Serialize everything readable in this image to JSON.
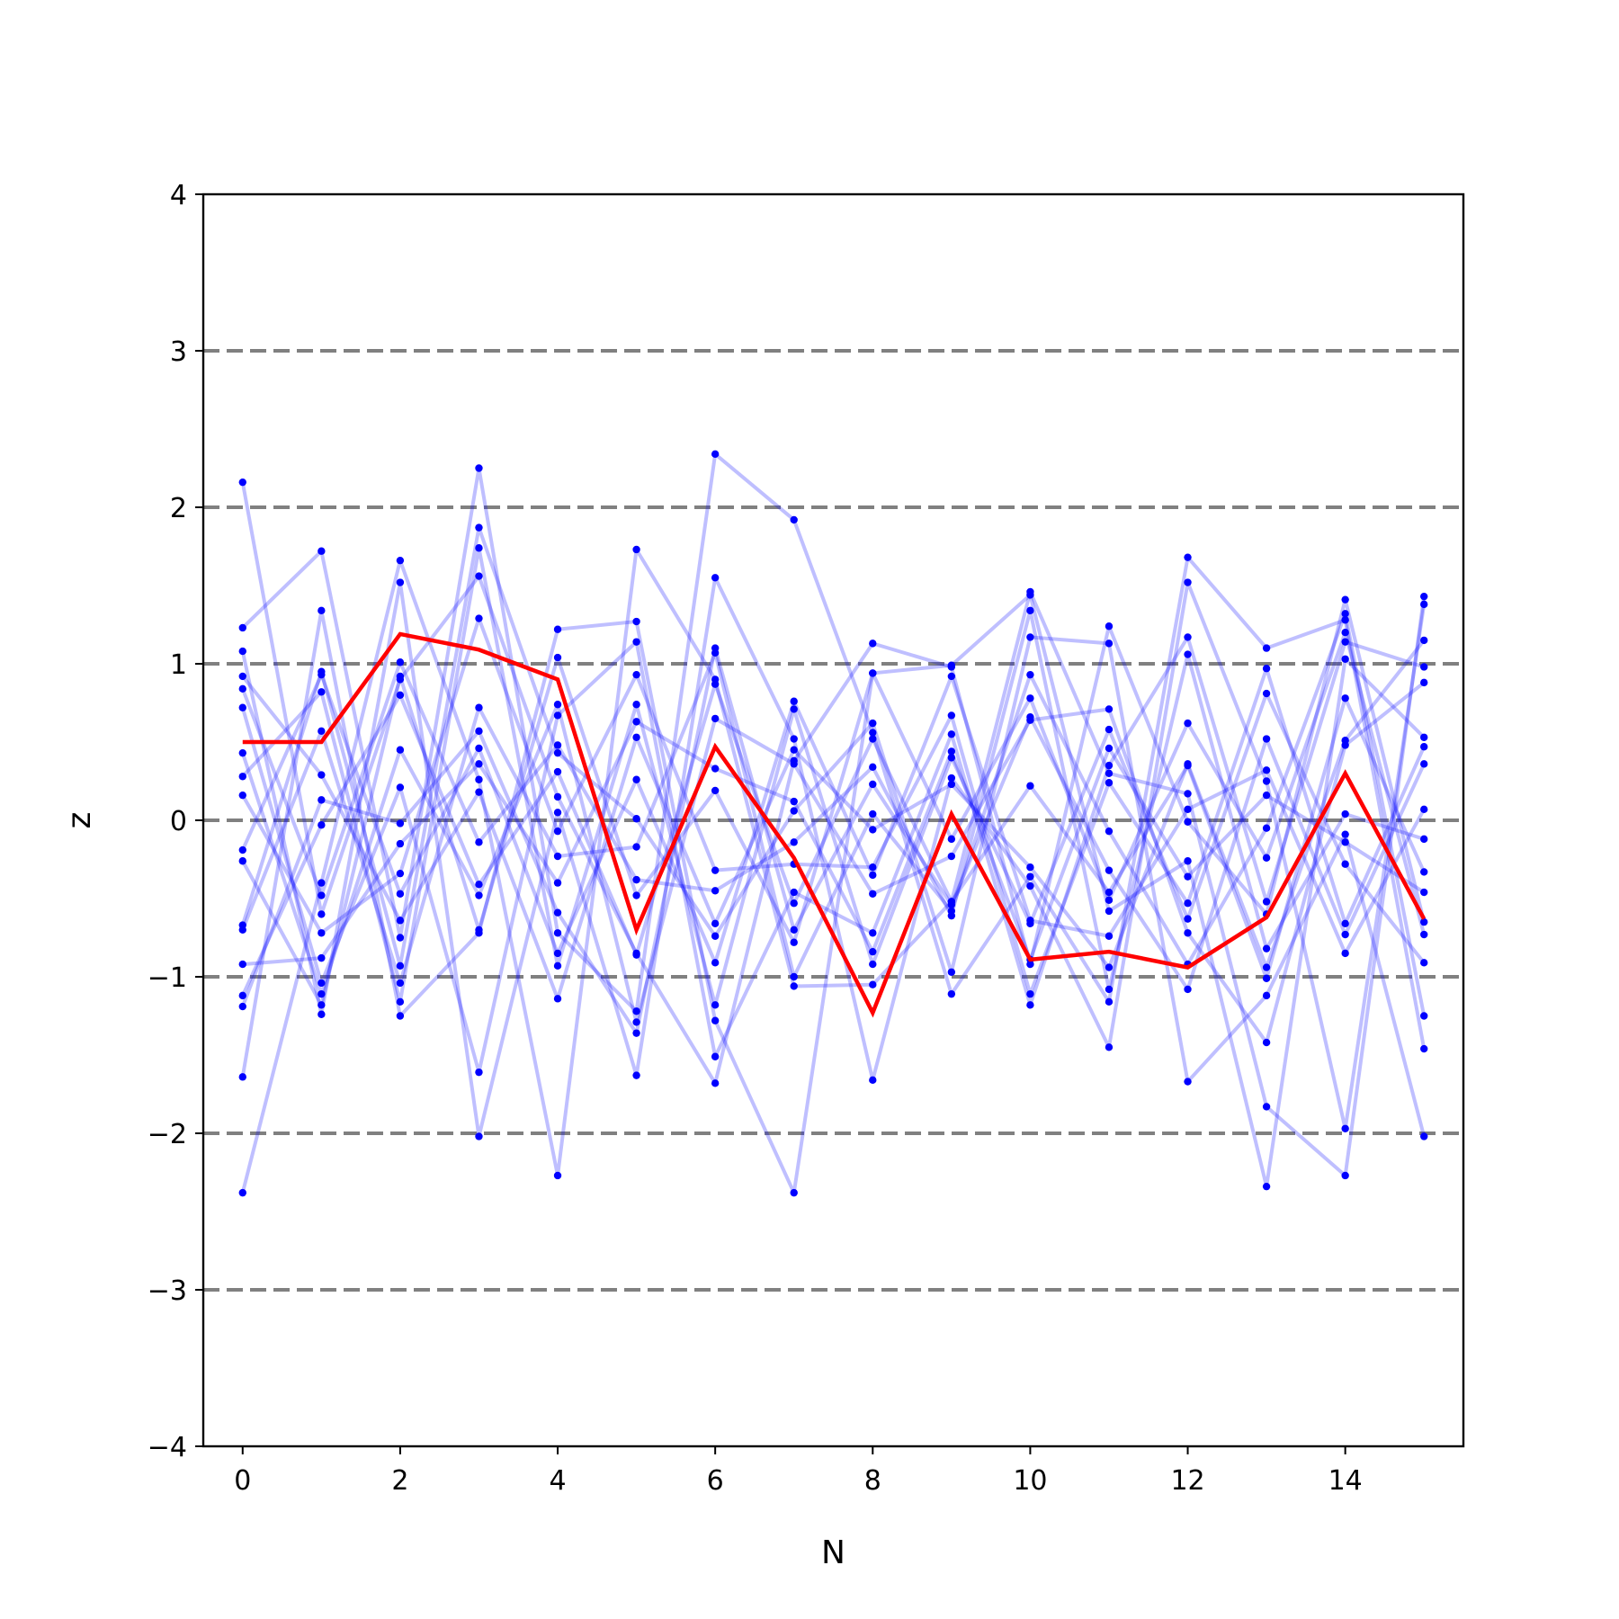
{
  "chart_data": {
    "type": "line",
    "title": "",
    "xlabel": "N",
    "ylabel": "z",
    "xlim": [
      -0.5,
      15.5
    ],
    "ylim": [
      -4,
      4
    ],
    "x": [
      0,
      1,
      2,
      3,
      4,
      5,
      6,
      7,
      8,
      9,
      10,
      11,
      12,
      13,
      14,
      15
    ],
    "xticks": [
      0,
      2,
      4,
      6,
      8,
      10,
      12,
      14
    ],
    "yticks": [
      -4,
      -3,
      -2,
      -1,
      0,
      1,
      2,
      3,
      4
    ],
    "xtick_labels": [
      "0",
      "2",
      "4",
      "6",
      "8",
      "10",
      "12",
      "14"
    ],
    "ytick_labels": [
      "−4",
      "−3",
      "−2",
      "−1",
      "0",
      "1",
      "2",
      "3",
      "4"
    ],
    "reference_lines": [
      -3,
      -2,
      -1,
      0,
      1,
      2,
      3
    ],
    "grid": false,
    "legend": "none",
    "colors": {
      "samples": "#0000ff",
      "highlight": "#ff0000",
      "reference": "#808080",
      "axes": "#000000"
    },
    "series": [
      {
        "style": "highlight",
        "values": [
          0.5,
          0.5,
          1.19,
          1.09,
          0.9,
          -0.7,
          0.47,
          -0.24,
          -1.23,
          0.04,
          -0.89,
          -0.84,
          -0.94,
          -0.62,
          0.3,
          -0.63
        ]
      },
      {
        "style": "sample",
        "values": [
          2.16,
          -0.6,
          0.9,
          1.56,
          0.15,
          -0.85,
          -1.68,
          0.38,
          1.13,
          0.98,
          -0.92,
          1.24,
          -0.01,
          -0.6,
          1.41,
          -0.65
        ]
      },
      {
        "style": "sample",
        "values": [
          -2.38,
          -0.4,
          1.66,
          0.26,
          -2.27,
          1.73,
          0.9,
          -1.06,
          -1.05,
          -0.52,
          1.46,
          0.3,
          0.17,
          -1.83,
          -2.27,
          1.43
        ]
      },
      {
        "style": "sample",
        "values": [
          1.23,
          1.72,
          -0.75,
          2.25,
          -0.72,
          -1.22,
          2.34,
          1.92,
          0.56,
          -1.11,
          -0.36,
          -1.16,
          1.68,
          1.1,
          1.28,
          -1.46
        ]
      },
      {
        "style": "sample",
        "values": [
          -1.64,
          1.34,
          -1.25,
          -0.72,
          1.22,
          1.27,
          -1.28,
          -2.38,
          0.94,
          0.99,
          1.44,
          -0.58,
          -0.26,
          -2.34,
          1.03,
          0.53
        ]
      },
      {
        "style": "sample",
        "values": [
          1.08,
          -1.24,
          1.52,
          -2.02,
          0.05,
          -1.63,
          1.55,
          0.52,
          -1.66,
          0.27,
          -0.42,
          -1.45,
          1.52,
          0.25,
          -1.97,
          1.38
        ]
      },
      {
        "style": "sample",
        "values": [
          -0.67,
          0.95,
          -0.93,
          1.87,
          0.43,
          0.01,
          -0.74,
          0.06,
          0.62,
          -0.97,
          1.17,
          1.13,
          -1.67,
          -1.12,
          -0.09,
          -2.02
        ]
      },
      {
        "style": "sample",
        "values": [
          0.72,
          -1.04,
          0.21,
          -1.61,
          0.67,
          1.14,
          -1.51,
          -0.46,
          -0.72,
          0.55,
          -1.18,
          0.35,
          1.17,
          -0.52,
          1.14,
          0.98
        ]
      },
      {
        "style": "sample",
        "values": [
          -1.19,
          0.13,
          -0.02,
          0.57,
          -0.59,
          -1.36,
          1.1,
          -0.7,
          0.23,
          -0.54,
          0.66,
          -0.32,
          -1.08,
          0.52,
          -0.73,
          0.36
        ]
      },
      {
        "style": "sample",
        "values": [
          0.28,
          0.82,
          -1.16,
          1.74,
          -0.93,
          0.74,
          -1.18,
          0.71,
          -0.92,
          0.4,
          -0.66,
          0.58,
          -0.63,
          0.81,
          -0.28,
          -0.91
        ]
      },
      {
        "style": "sample",
        "values": [
          -0.26,
          -1.18,
          0.92,
          -0.7,
          1.04,
          -0.48,
          0.19,
          -0.78,
          0.94,
          -0.12,
          0.78,
          -0.51,
          0.62,
          -0.24,
          1.2,
          -0.73
        ]
      },
      {
        "style": "sample",
        "values": [
          0.92,
          0.29,
          -0.64,
          0.18,
          -1.14,
          0.53,
          -0.66,
          0.45,
          -0.06,
          0.23,
          -0.3,
          -0.94,
          0.36,
          -0.94,
          0.51,
          1.15
        ]
      },
      {
        "style": "sample",
        "values": [
          -1.12,
          -0.03,
          0.8,
          -0.41,
          0.31,
          -0.86,
          0.87,
          -0.53,
          0.52,
          -0.52,
          0.22,
          -0.46,
          0.35,
          -1.01,
          0.78,
          -0.33
        ]
      },
      {
        "style": "sample",
        "values": [
          0.16,
          -0.72,
          -0.34,
          1.29,
          -0.07,
          0.93,
          -0.32,
          -0.28,
          -0.3,
          0.67,
          -1.11,
          0.24,
          -0.53,
          0.97,
          -0.66,
          0.47
        ]
      },
      {
        "style": "sample",
        "values": [
          -0.7,
          0.57,
          -1.04,
          0.72,
          -0.23,
          -0.17,
          1.07,
          -1.0,
          0.04,
          -0.58,
          0.93,
          -0.07,
          -0.92,
          -0.05,
          1.32,
          -1.25
        ]
      },
      {
        "style": "sample",
        "values": [
          0.43,
          -1.11,
          0.45,
          -0.48,
          0.74,
          -1.29,
          0.65,
          0.36,
          -0.47,
          -0.23,
          0.64,
          0.71,
          -0.72,
          -1.42,
          0.48,
          0.88
        ]
      },
      {
        "style": "sample",
        "values": [
          -0.19,
          0.93,
          -0.47,
          0.46,
          -0.85,
          0.26,
          -0.91,
          0.76,
          -0.35,
          0.92,
          -0.64,
          -0.74,
          0.07,
          0.32,
          -0.85,
          0.07
        ]
      },
      {
        "style": "sample",
        "values": [
          0.84,
          -0.48,
          1.01,
          -0.14,
          0.48,
          -0.38,
          -0.45,
          -0.14,
          0.34,
          -0.61,
          1.34,
          -1.08,
          1.06,
          -0.82,
          0.04,
          -0.12
        ]
      },
      {
        "style": "sample",
        "values": [
          -0.92,
          -0.88,
          -0.15,
          0.36,
          -0.4,
          0.63,
          0.33,
          0.12,
          -0.84,
          0.44,
          -0.89,
          0.46,
          -0.36,
          0.16,
          -0.14,
          -0.46
        ]
      }
    ]
  }
}
